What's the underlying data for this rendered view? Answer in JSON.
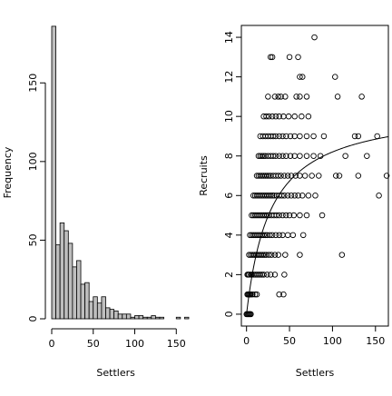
{
  "chart_data": [
    {
      "type": "bar",
      "subtype": "histogram",
      "xlabel": "Settlers",
      "ylabel": "Frequency",
      "xlim": [
        0,
        165
      ],
      "ylim": [
        0,
        190
      ],
      "xticks": [
        0,
        50,
        100,
        150
      ],
      "yticks": [
        0,
        50,
        100,
        150
      ],
      "bin_width": 5,
      "bin_start": 0,
      "values": [
        186,
        47,
        61,
        56,
        48,
        33,
        37,
        22,
        23,
        11,
        14,
        10,
        14,
        7,
        6,
        5,
        3,
        3,
        3,
        1,
        2,
        2,
        1,
        1,
        2,
        1,
        1,
        0,
        0,
        0,
        1,
        0,
        1
      ],
      "fill_color": "#bebebe"
    },
    {
      "type": "scatter",
      "xlabel": "Settlers",
      "ylabel": "Recruits",
      "xlim": [
        -6,
        165
      ],
      "ylim": [
        -0.6,
        14.6
      ],
      "xticks": [
        0,
        50,
        100,
        150
      ],
      "yticks": [
        0,
        2,
        4,
        6,
        8,
        10,
        12,
        14
      ],
      "marker": "open-circle",
      "fit_curve": {
        "type": "beverton-holt",
        "a": 10.5,
        "b": 28
      },
      "points": [
        [
          0,
          0
        ],
        [
          1,
          0
        ],
        [
          2,
          0
        ],
        [
          3,
          0
        ],
        [
          4,
          0
        ],
        [
          5,
          0
        ],
        [
          1,
          1
        ],
        [
          2,
          1
        ],
        [
          3,
          1
        ],
        [
          4,
          1
        ],
        [
          5,
          1
        ],
        [
          7,
          1
        ],
        [
          10,
          1
        ],
        [
          12,
          1
        ],
        [
          38,
          1
        ],
        [
          43,
          1
        ],
        [
          1,
          2
        ],
        [
          2,
          2
        ],
        [
          3,
          2
        ],
        [
          5,
          2
        ],
        [
          6,
          2
        ],
        [
          8,
          2
        ],
        [
          10,
          2
        ],
        [
          12,
          2
        ],
        [
          14,
          2
        ],
        [
          16,
          2
        ],
        [
          18,
          2
        ],
        [
          20,
          2
        ],
        [
          24,
          2
        ],
        [
          28,
          2
        ],
        [
          33,
          2
        ],
        [
          44,
          2
        ],
        [
          3,
          3
        ],
        [
          5,
          3
        ],
        [
          7,
          3
        ],
        [
          9,
          3
        ],
        [
          11,
          3
        ],
        [
          13,
          3
        ],
        [
          15,
          3
        ],
        [
          17,
          3
        ],
        [
          19,
          3
        ],
        [
          21,
          3
        ],
        [
          23,
          3
        ],
        [
          26,
          3
        ],
        [
          29,
          3
        ],
        [
          33,
          3
        ],
        [
          37,
          3
        ],
        [
          45,
          3
        ],
        [
          62,
          3
        ],
        [
          111,
          3
        ],
        [
          4,
          4
        ],
        [
          6,
          4
        ],
        [
          8,
          4
        ],
        [
          10,
          4
        ],
        [
          12,
          4
        ],
        [
          14,
          4
        ],
        [
          16,
          4
        ],
        [
          18,
          4
        ],
        [
          20,
          4
        ],
        [
          22,
          4
        ],
        [
          24,
          4
        ],
        [
          27,
          4
        ],
        [
          30,
          4
        ],
        [
          34,
          4
        ],
        [
          38,
          4
        ],
        [
          42,
          4
        ],
        [
          48,
          4
        ],
        [
          54,
          4
        ],
        [
          66,
          4
        ],
        [
          6,
          5
        ],
        [
          8,
          5
        ],
        [
          10,
          5
        ],
        [
          12,
          5
        ],
        [
          14,
          5
        ],
        [
          16,
          5
        ],
        [
          18,
          5
        ],
        [
          20,
          5
        ],
        [
          22,
          5
        ],
        [
          24,
          5
        ],
        [
          26,
          5
        ],
        [
          29,
          5
        ],
        [
          32,
          5
        ],
        [
          35,
          5
        ],
        [
          38,
          5
        ],
        [
          42,
          5
        ],
        [
          46,
          5
        ],
        [
          50,
          5
        ],
        [
          55,
          5
        ],
        [
          62,
          5
        ],
        [
          70,
          5
        ],
        [
          88,
          5
        ],
        [
          8,
          6
        ],
        [
          10,
          6
        ],
        [
          12,
          6
        ],
        [
          14,
          6
        ],
        [
          16,
          6
        ],
        [
          18,
          6
        ],
        [
          20,
          6
        ],
        [
          22,
          6
        ],
        [
          24,
          6
        ],
        [
          26,
          6
        ],
        [
          28,
          6
        ],
        [
          30,
          6
        ],
        [
          32,
          6
        ],
        [
          35,
          6
        ],
        [
          38,
          6
        ],
        [
          41,
          6
        ],
        [
          44,
          6
        ],
        [
          48,
          6
        ],
        [
          52,
          6
        ],
        [
          56,
          6
        ],
        [
          60,
          6
        ],
        [
          65,
          6
        ],
        [
          72,
          6
        ],
        [
          80,
          6
        ],
        [
          154,
          6
        ],
        [
          12,
          7
        ],
        [
          14,
          7
        ],
        [
          16,
          7
        ],
        [
          18,
          7
        ],
        [
          20,
          7
        ],
        [
          22,
          7
        ],
        [
          24,
          7
        ],
        [
          26,
          7
        ],
        [
          28,
          7
        ],
        [
          31,
          7
        ],
        [
          34,
          7
        ],
        [
          37,
          7
        ],
        [
          40,
          7
        ],
        [
          44,
          7
        ],
        [
          48,
          7
        ],
        [
          52,
          7
        ],
        [
          57,
          7
        ],
        [
          62,
          7
        ],
        [
          68,
          7
        ],
        [
          76,
          7
        ],
        [
          84,
          7
        ],
        [
          104,
          7
        ],
        [
          108,
          7
        ],
        [
          130,
          7
        ],
        [
          163,
          7
        ],
        [
          14,
          8
        ],
        [
          16,
          8
        ],
        [
          18,
          8
        ],
        [
          20,
          8
        ],
        [
          22,
          8
        ],
        [
          25,
          8
        ],
        [
          28,
          8
        ],
        [
          31,
          8
        ],
        [
          34,
          8
        ],
        [
          38,
          8
        ],
        [
          42,
          8
        ],
        [
          46,
          8
        ],
        [
          51,
          8
        ],
        [
          56,
          8
        ],
        [
          62,
          8
        ],
        [
          70,
          8
        ],
        [
          78,
          8
        ],
        [
          86,
          8
        ],
        [
          115,
          8
        ],
        [
          140,
          8
        ],
        [
          16,
          9
        ],
        [
          19,
          9
        ],
        [
          22,
          9
        ],
        [
          25,
          9
        ],
        [
          28,
          9
        ],
        [
          31,
          9
        ],
        [
          34,
          9
        ],
        [
          38,
          9
        ],
        [
          42,
          9
        ],
        [
          46,
          9
        ],
        [
          51,
          9
        ],
        [
          56,
          9
        ],
        [
          62,
          9
        ],
        [
          70,
          9
        ],
        [
          78,
          9
        ],
        [
          90,
          9
        ],
        [
          126,
          9
        ],
        [
          130,
          9
        ],
        [
          152,
          9
        ],
        [
          20,
          10
        ],
        [
          23,
          10
        ],
        [
          26,
          10
        ],
        [
          30,
          10
        ],
        [
          34,
          10
        ],
        [
          38,
          10
        ],
        [
          43,
          10
        ],
        [
          49,
          10
        ],
        [
          56,
          10
        ],
        [
          64,
          10
        ],
        [
          72,
          10
        ],
        [
          25,
          11
        ],
        [
          33,
          11
        ],
        [
          37,
          11
        ],
        [
          40,
          11
        ],
        [
          45,
          11
        ],
        [
          58,
          11
        ],
        [
          62,
          11
        ],
        [
          70,
          11
        ],
        [
          106,
          11
        ],
        [
          134,
          11
        ],
        [
          62,
          12
        ],
        [
          65,
          12
        ],
        [
          103,
          12
        ],
        [
          28,
          13
        ],
        [
          30,
          13
        ],
        [
          50,
          13
        ],
        [
          60,
          13
        ],
        [
          79,
          14
        ]
      ]
    }
  ]
}
